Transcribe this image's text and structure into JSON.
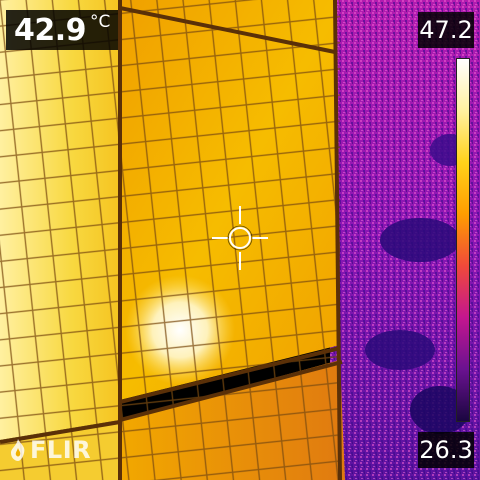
{
  "spot_meter": {
    "value": "42.9",
    "unit": "°C"
  },
  "scale": {
    "max": "47.2",
    "min": "26.3",
    "palette": [
      "#ffffff",
      "#fff2a0",
      "#ffd21a",
      "#ff9d00",
      "#f04a3a",
      "#c4168f",
      "#6a1290",
      "#1a0640"
    ]
  },
  "logo": {
    "text": "FLIR",
    "icon": "flir-flame-icon"
  },
  "colors": {
    "hot": "#fff6d0",
    "warm": "#f8c800",
    "mid": "#f0a000",
    "edge": "#e07a10",
    "cool_purple": "#a11ab8",
    "cold": "#1a0a6a"
  }
}
